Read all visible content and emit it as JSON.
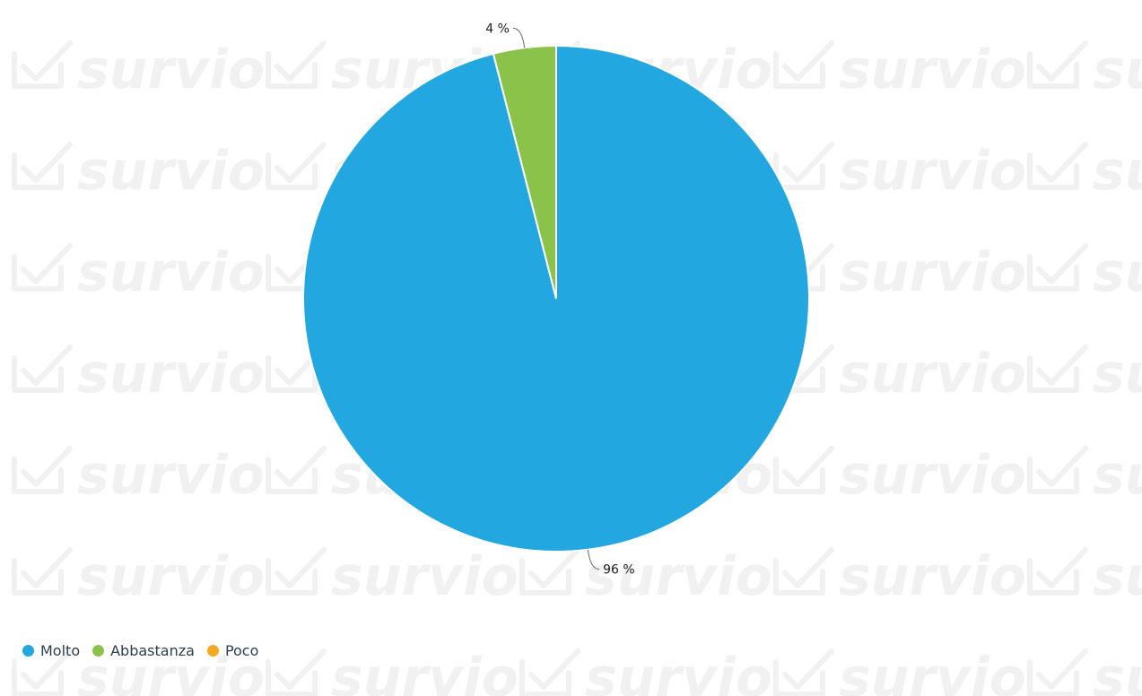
{
  "chart_data": {
    "type": "pie",
    "title": "",
    "categories": [
      "Molto",
      "Abbastanza",
      "Poco"
    ],
    "values": [
      96,
      4,
      0
    ],
    "unit": "%",
    "labels": [
      "96 %",
      "4 %",
      ""
    ],
    "colors": [
      "#22a7e0",
      "#8bc34a",
      "#f7a823"
    ],
    "legend_placement": "bottom-left"
  },
  "watermark": {
    "text": "survio",
    "icon": "checkbox-check-icon"
  },
  "legend": {
    "items": [
      {
        "label": "Molto",
        "color": "#22a7e0"
      },
      {
        "label": "Abbastanza",
        "color": "#8bc34a"
      },
      {
        "label": "Poco",
        "color": "#f7a823"
      }
    ]
  }
}
